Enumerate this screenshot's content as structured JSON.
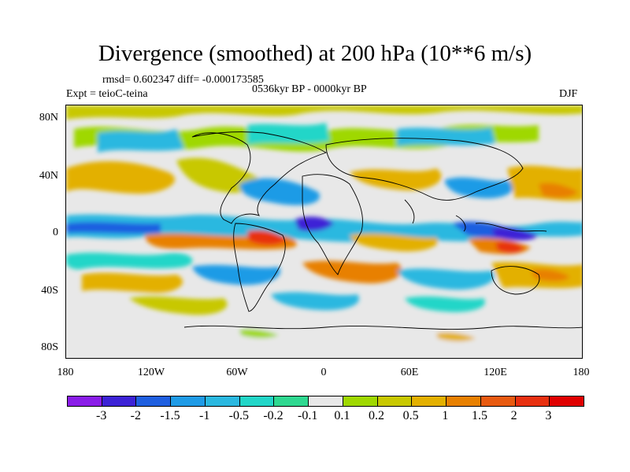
{
  "title": "Divergence (smoothed) at 200 hPa (10**6 m/s)",
  "stats": "rmsd= 0.602347  diff= -0.000173585",
  "experiment": "Expt = teioC-teina",
  "period": "0536kyr BP - 0000kyr BP",
  "season": "DJF",
  "y_axis_labels": [
    "80N",
    "40N",
    "0",
    "40S",
    "80S"
  ],
  "x_axis_labels": [
    "180",
    "120W",
    "60W",
    "0",
    "60E",
    "120E",
    "180"
  ],
  "colorbar_labels": [
    "-3",
    "-2",
    "-1.5",
    "-1",
    "-0.5",
    "-0.2",
    "-0.1",
    "0.1",
    "0.2",
    "0.5",
    "1",
    "1.5",
    "2",
    "3"
  ],
  "colorbar_colors": [
    "#8a1de8",
    "#3c22d6",
    "#1f5fe0",
    "#1f9be6",
    "#2ab8e0",
    "#22d6c8",
    "#2ed890",
    "#e8e8e8",
    "#9fd800",
    "#c8c800",
    "#e3b000",
    "#e88000",
    "#e85a10",
    "#e83010",
    "#e00000"
  ]
}
